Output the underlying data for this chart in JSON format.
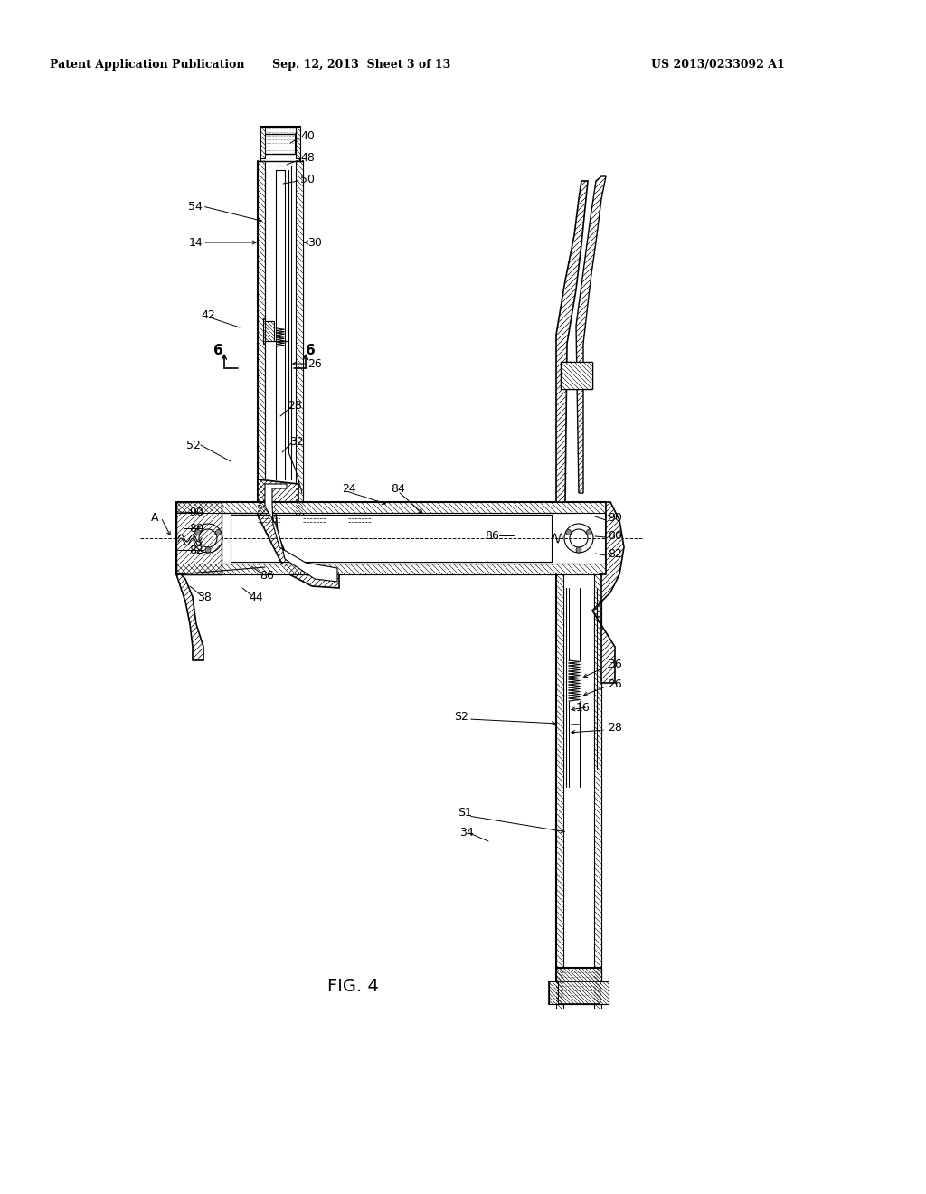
{
  "header_left": "Patent Application Publication",
  "header_center": "Sep. 12, 2013  Sheet 3 of 13",
  "header_right": "US 2013/0233092 A1",
  "fig_label": "FIG. 4",
  "bg_color": "#ffffff"
}
